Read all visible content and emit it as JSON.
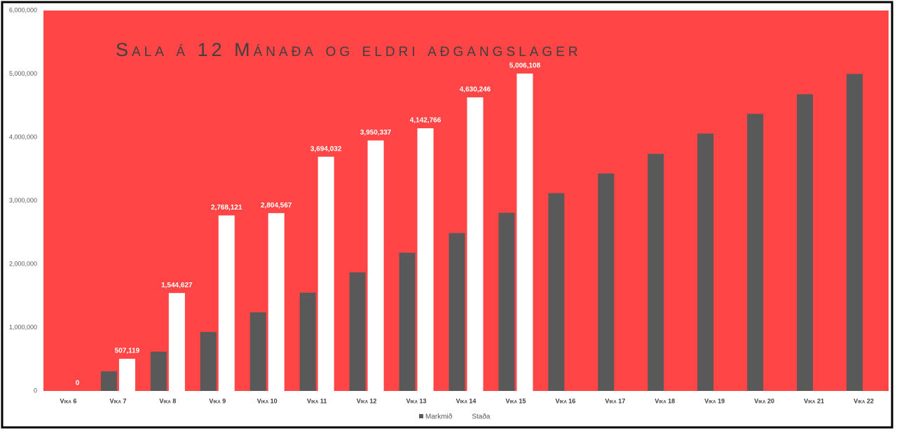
{
  "chart_data": {
    "type": "bar",
    "title": "Sala á 12 Mánaða og eldri aðgangslager",
    "categories": [
      "Vika 6",
      "Vika 7",
      "Vika 8",
      "Vika 9",
      "Vika 10",
      "Vika 11",
      "Vika 12",
      "Vika 13",
      "Vika 14",
      "Vika 15",
      "Vika 16",
      "Vika 17",
      "Vika 18",
      "Vika 19",
      "Vika 20",
      "Vika 21",
      "Vika 22"
    ],
    "series": [
      {
        "name": "Markmið",
        "color": "#595959",
        "values": [
          0,
          310000,
          620000,
          930000,
          1240000,
          1550000,
          1870000,
          2180000,
          2490000,
          2810000,
          3120000,
          3430000,
          3740000,
          4060000,
          4370000,
          4680000,
          5000000
        ]
      },
      {
        "name": "Staða",
        "color": "#ffffff",
        "values": [
          0,
          507119,
          1544627,
          2768121,
          2804567,
          3694032,
          3950337,
          4142766,
          4630246,
          5006108,
          null,
          null,
          null,
          null,
          null,
          null,
          null
        ],
        "value_labels": [
          "0",
          "507,119",
          "1,544,627",
          "2,768,121",
          "2,804,567",
          "3,694,032",
          "3,950,337",
          "4,142,766",
          "4,630,246",
          "5,006,108",
          null,
          null,
          null,
          null,
          null,
          null,
          null
        ]
      }
    ],
    "ylim": [
      0,
      6000000
    ],
    "yticks": [
      0,
      {
        "value": 1000000,
        "label": "1,000,000"
      },
      {
        "value": 2000000,
        "label": "2,000,000"
      },
      {
        "value": 3000000,
        "label": "3,000,000"
      },
      {
        "value": 4000000,
        "label": "4,000,000"
      },
      {
        "value": 5000000,
        "label": "5,000,000"
      },
      {
        "value": 6000000,
        "label": "6,000,000"
      }
    ],
    "plot_background": "#ff4545",
    "legend": "bottom"
  }
}
